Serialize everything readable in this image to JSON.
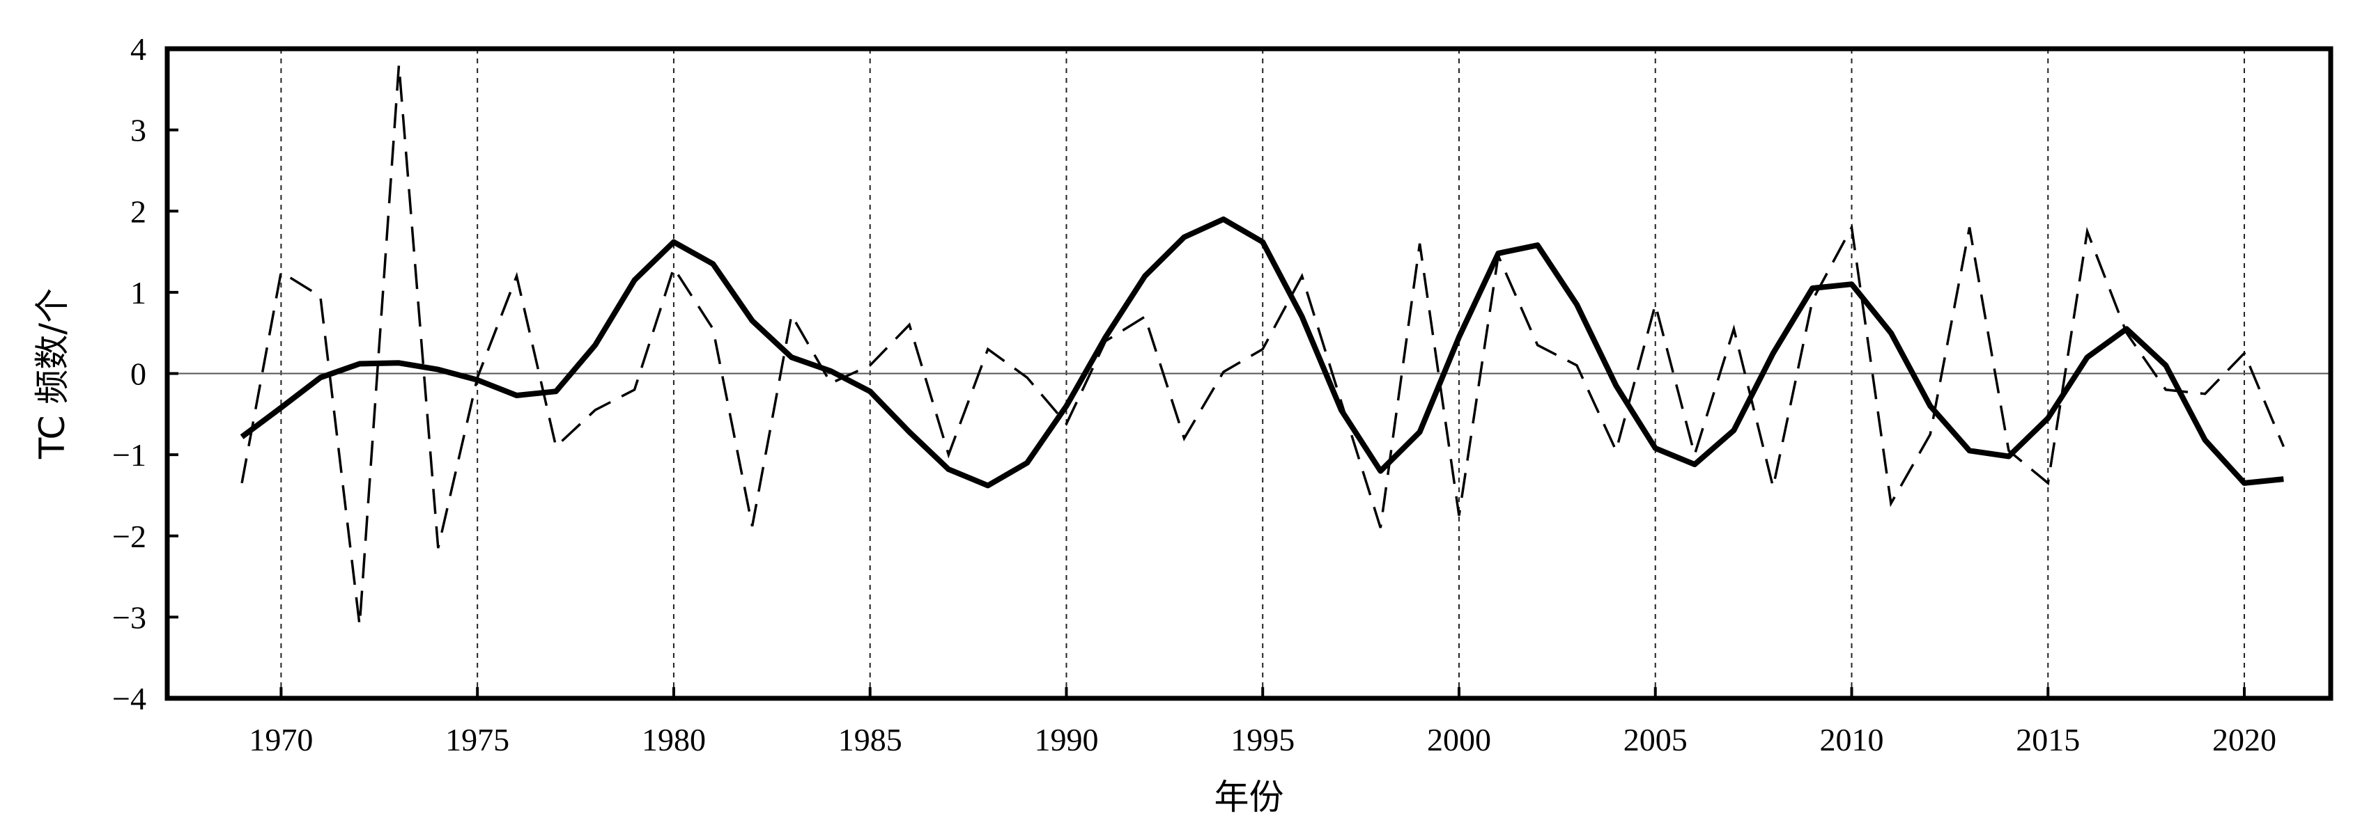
{
  "chart_data": {
    "type": "line",
    "xlabel": "年份",
    "ylabel": "TC 频数/个",
    "xlim": [
      1967.1,
      2022.2
    ],
    "ylim": [
      -4,
      4
    ],
    "x_ticks": [
      1970,
      1975,
      1980,
      1985,
      1990,
      1995,
      2000,
      2005,
      2010,
      2015,
      2020
    ],
    "y_ticks": [
      -4,
      -3,
      -2,
      -1,
      0,
      1,
      2,
      3,
      4
    ],
    "x_tick_labels": [
      "1970",
      "1975",
      "1980",
      "1985",
      "1990",
      "1995",
      "2000",
      "2005",
      "2010",
      "2015",
      "2020"
    ],
    "y_tick_labels": [
      "−4",
      "−3",
      "−2",
      "−1",
      "0",
      "1",
      "2",
      "3",
      "4"
    ],
    "vertical_dashed_gridlines": [
      1970,
      1975,
      1980,
      1985,
      1990,
      1995,
      2000,
      2005,
      2010,
      2015,
      2020
    ],
    "zero_line": true,
    "legend": "none",
    "series": [
      {
        "style": "solid-thick",
        "x": [
          1969,
          1970,
          1971,
          1972,
          1973,
          1974,
          1975,
          1976,
          1977,
          1978,
          1979,
          1980,
          1981,
          1982,
          1983,
          1984,
          1985,
          1986,
          1987,
          1988,
          1989,
          1990,
          1991,
          1992,
          1993,
          1994,
          1995,
          1996,
          1997,
          1998,
          1999,
          2000,
          2001,
          2002,
          2003,
          2004,
          2005,
          2006,
          2007,
          2008,
          2009,
          2010,
          2011,
          2012,
          2013,
          2014,
          2015,
          2016,
          2017,
          2018,
          2019,
          2020,
          2021
        ],
        "y": [
          -0.78,
          -0.42,
          -0.05,
          0.12,
          0.13,
          0.05,
          -0.08,
          -0.27,
          -0.22,
          0.35,
          1.15,
          1.62,
          1.35,
          0.65,
          0.2,
          0.03,
          -0.22,
          -0.72,
          -1.18,
          -1.38,
          -1.1,
          -0.4,
          0.45,
          1.2,
          1.68,
          1.9,
          1.62,
          0.7,
          -0.45,
          -1.2,
          -0.72,
          0.45,
          1.48,
          1.58,
          0.85,
          -0.15,
          -0.92,
          -1.12,
          -0.7,
          0.25,
          1.05,
          1.1,
          0.5,
          -0.4,
          -0.95,
          -1.02,
          -0.55,
          0.2,
          0.55,
          0.1,
          -0.82,
          -1.35,
          -1.3
        ]
      },
      {
        "style": "dashed",
        "x": [
          1969,
          1970,
          1971,
          1972,
          1973,
          1974,
          1975,
          1976,
          1977,
          1978,
          1979,
          1980,
          1981,
          1982,
          1983,
          1984,
          1985,
          1986,
          1987,
          1988,
          1989,
          1990,
          1991,
          1992,
          1993,
          1994,
          1995,
          1996,
          1997,
          1998,
          1999,
          2000,
          2001,
          2002,
          2003,
          2004,
          2005,
          2006,
          2007,
          2008,
          2009,
          2010,
          2011,
          2012,
          2013,
          2014,
          2015,
          2016,
          2017,
          2018,
          2019,
          2020,
          2021
        ],
        "y": [
          -1.35,
          1.25,
          0.95,
          -3.1,
          3.8,
          -2.15,
          -0.05,
          1.2,
          -0.9,
          -0.45,
          -0.2,
          1.3,
          0.55,
          -1.88,
          0.72,
          -0.12,
          0.1,
          0.6,
          -1.0,
          0.3,
          -0.05,
          -0.62,
          0.4,
          0.7,
          -0.8,
          0.02,
          0.3,
          1.2,
          -0.35,
          -1.9,
          1.6,
          -1.75,
          1.45,
          0.35,
          0.1,
          -0.95,
          0.85,
          -1.0,
          0.55,
          -1.4,
          0.9,
          1.8,
          -1.6,
          -0.75,
          1.8,
          -0.95,
          -1.35,
          1.75,
          0.5,
          -0.2,
          -0.25,
          0.25,
          -0.9
        ]
      }
    ]
  }
}
